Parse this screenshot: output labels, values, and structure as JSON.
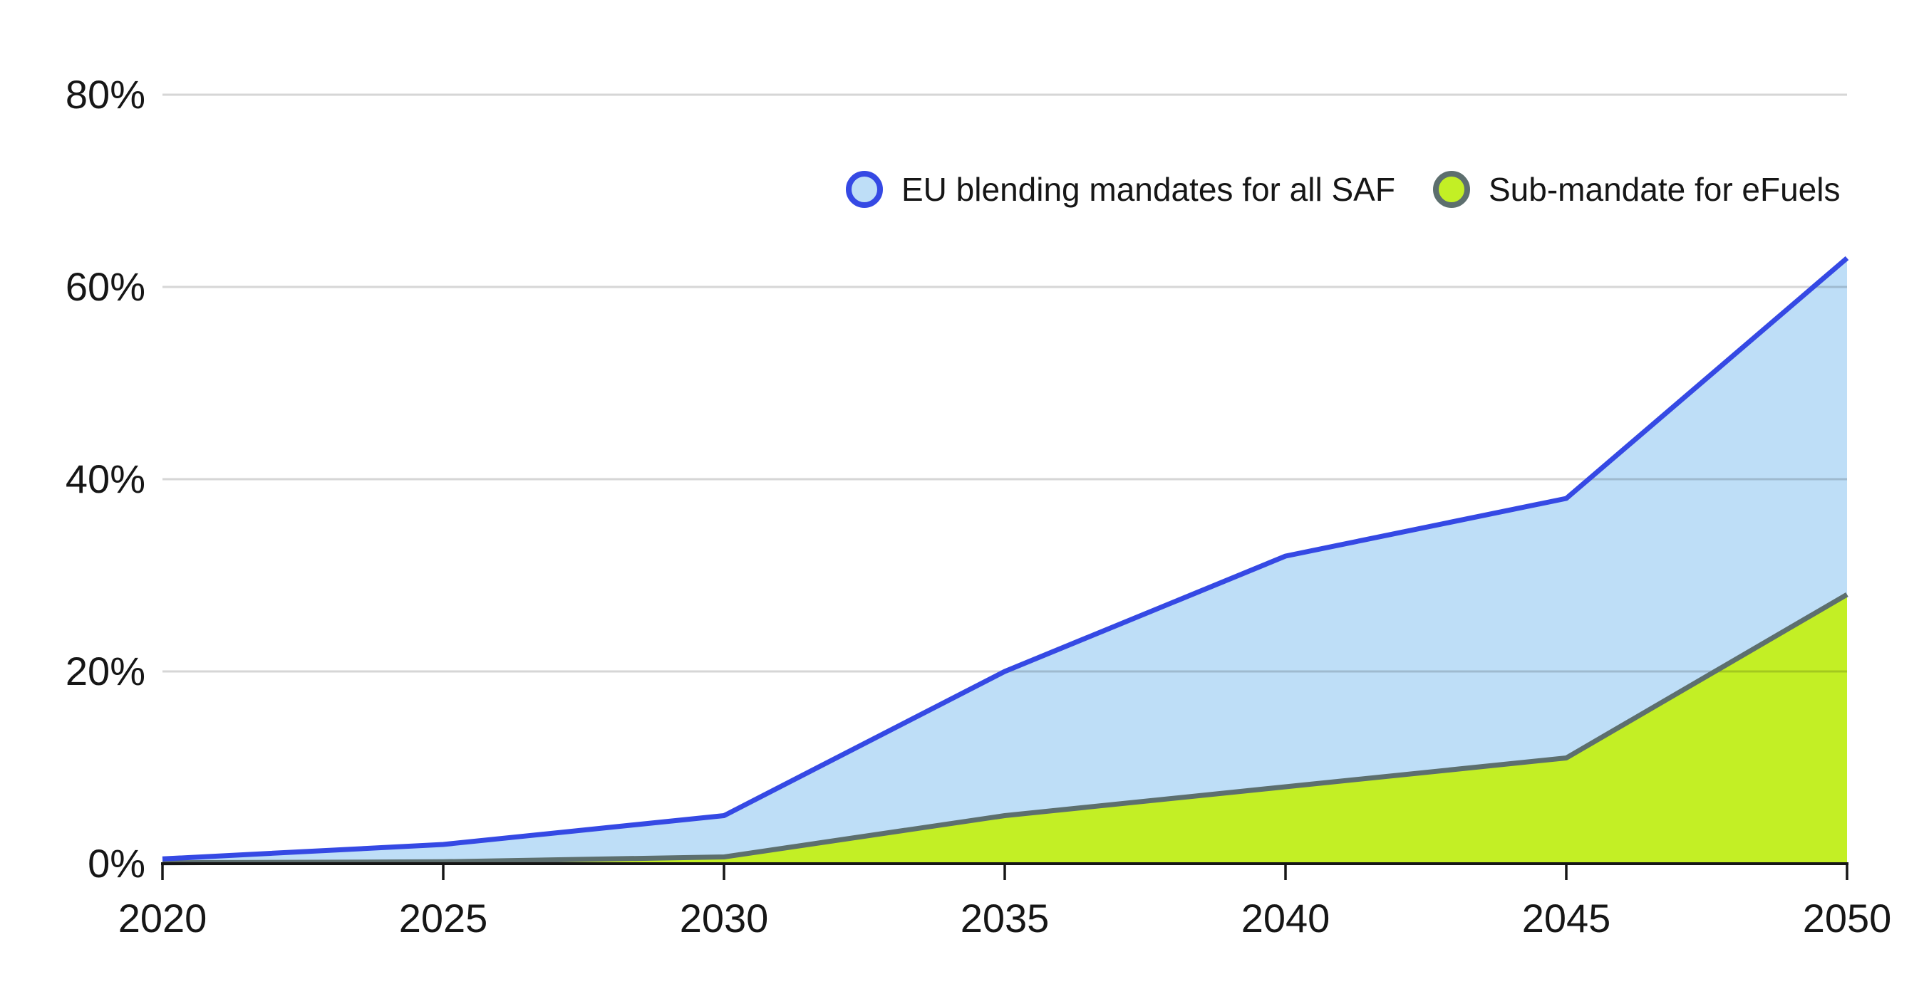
{
  "chart_data": {
    "type": "area",
    "title": "",
    "xlabel": "",
    "ylabel": "",
    "x": [
      2020,
      2025,
      2030,
      2035,
      2040,
      2045,
      2050
    ],
    "x_tick_labels": [
      "2020",
      "2025",
      "2030",
      "2035",
      "2040",
      "2045",
      "2050"
    ],
    "series": [
      {
        "name": "EU blending mandates for all SAF",
        "values": [
          0.5,
          2,
          5,
          20,
          32,
          38,
          63
        ],
        "fill_color": "#bedef7",
        "line_color": "#3549e4"
      },
      {
        "name": "Sub-mandate for eFuels",
        "values": [
          0.1,
          0.2,
          0.7,
          5,
          8,
          11,
          28
        ],
        "fill_color": "#c3ef25",
        "line_color": "#5d6f6e"
      }
    ],
    "ylim": [
      0,
      80
    ],
    "y_ticks": {
      "values": [
        0,
        20,
        40,
        60,
        80
      ],
      "labels": [
        "0%",
        "20%",
        "40%",
        "60%",
        "80%"
      ]
    },
    "grid": "horizontal",
    "legend_position": "top-right"
  },
  "colors": {
    "background": "#ffffff",
    "grid_line": "#d6d6d6",
    "grid_overlay": "rgba(0,0,0,0.16)",
    "axis_line": "#161616",
    "text": "#161616"
  }
}
